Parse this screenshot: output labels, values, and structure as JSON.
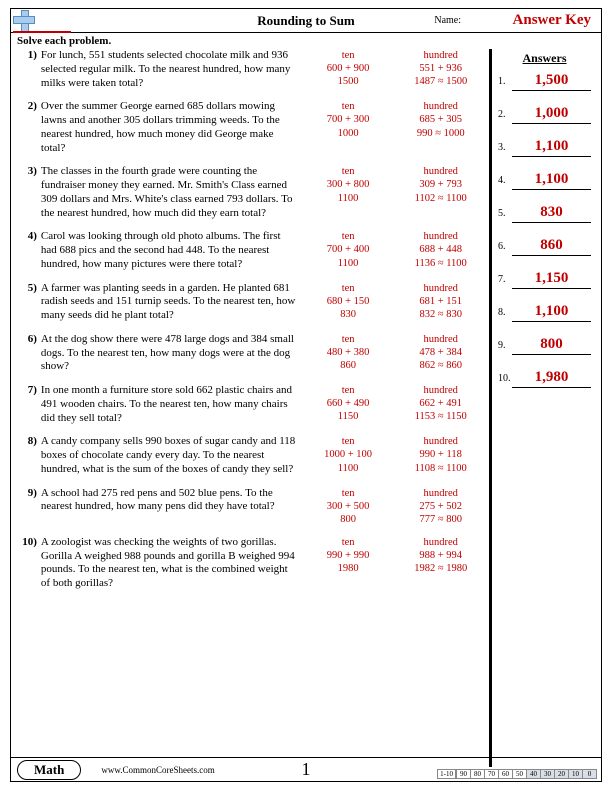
{
  "header": {
    "title": "Rounding to Sum",
    "name_label": "Name:",
    "answer_key": "Answer Key"
  },
  "instruction": "Solve each problem.",
  "answers_heading": "Answers",
  "problems": [
    {
      "n": "1)",
      "text": "For lunch, 551 students selected chocolate milk and 936 selected regular milk. To the nearest hundred, how many milks were taken total?",
      "ten": {
        "label": "ten",
        "line1": "600 + 900",
        "line2": "1500"
      },
      "hund": {
        "label": "hundred",
        "line1": "551 + 936",
        "line2": "1487 ≈ 1500"
      }
    },
    {
      "n": "2)",
      "text": "Over the summer George earned 685 dollars mowing lawns and another 305 dollars trimming weeds. To the nearest hundred, how much money did George make total?",
      "ten": {
        "label": "ten",
        "line1": "700 + 300",
        "line2": "1000"
      },
      "hund": {
        "label": "hundred",
        "line1": "685 + 305",
        "line2": "990 ≈ 1000"
      }
    },
    {
      "n": "3)",
      "text": "The classes in the fourth grade were counting the fundraiser money they earned. Mr. Smith's Class earned 309 dollars and Mrs. White's class earned 793 dollars. To the nearest hundred, how much did they earn total?",
      "ten": {
        "label": "ten",
        "line1": "300 + 800",
        "line2": "1100"
      },
      "hund": {
        "label": "hundred",
        "line1": "309 + 793",
        "line2": "1102 ≈ 1100"
      }
    },
    {
      "n": "4)",
      "text": "Carol was looking through old photo albums. The first had 688 pics and the second had 448. To the nearest hundred, how many pictures were there total?",
      "ten": {
        "label": "ten",
        "line1": "700 + 400",
        "line2": "1100"
      },
      "hund": {
        "label": "hundred",
        "line1": "688 + 448",
        "line2": "1136 ≈ 1100"
      }
    },
    {
      "n": "5)",
      "text": "A farmer was planting seeds in a garden. He planted 681 radish seeds and 151 turnip seeds. To the nearest ten, how many seeds did he plant total?",
      "ten": {
        "label": "ten",
        "line1": "680 + 150",
        "line2": "830"
      },
      "hund": {
        "label": "hundred",
        "line1": "681 + 151",
        "line2": "832 ≈ 830"
      }
    },
    {
      "n": "6)",
      "text": "At the dog show there were 478 large dogs and 384 small dogs. To the nearest ten, how many dogs were at the dog show?",
      "ten": {
        "label": "ten",
        "line1": "480 + 380",
        "line2": "860"
      },
      "hund": {
        "label": "hundred",
        "line1": "478 + 384",
        "line2": "862 ≈ 860"
      }
    },
    {
      "n": "7)",
      "text": "In one month a furniture store sold 662 plastic chairs and 491 wooden chairs. To the nearest ten, how many chairs did they sell total?",
      "ten": {
        "label": "ten",
        "line1": "660 + 490",
        "line2": "1150"
      },
      "hund": {
        "label": "hundred",
        "line1": "662 + 491",
        "line2": "1153 ≈ 1150"
      }
    },
    {
      "n": "8)",
      "text": "A candy company sells 990 boxes of sugar candy and 118 boxes of chocolate candy every day. To the nearest hundred, what is the sum of the boxes of candy they sell?",
      "ten": {
        "label": "ten",
        "line1": "1000 + 100",
        "line2": "1100"
      },
      "hund": {
        "label": "hundred",
        "line1": "990 + 118",
        "line2": "1108 ≈ 1100"
      }
    },
    {
      "n": "9)",
      "text": "A school had 275 red pens and 502 blue pens. To the nearest hundred, how many pens did they have total?",
      "ten": {
        "label": "ten",
        "line1": "300 + 500",
        "line2": "800"
      },
      "hund": {
        "label": "hundred",
        "line1": "275 + 502",
        "line2": "777 ≈ 800"
      }
    },
    {
      "n": "10)",
      "text": "A zoologist was checking the weights of two gorillas. Gorilla A weighed 988 pounds and gorilla B weighed 994 pounds. To the nearest ten, what is the combined weight of both gorillas?",
      "ten": {
        "label": "ten",
        "line1": "990 + 990",
        "line2": "1980"
      },
      "hund": {
        "label": "hundred",
        "line1": "988 + 994",
        "line2": "1982 ≈ 1980"
      }
    }
  ],
  "answers": [
    {
      "n": "1.",
      "v": "1,500"
    },
    {
      "n": "2.",
      "v": "1,000"
    },
    {
      "n": "3.",
      "v": "1,100"
    },
    {
      "n": "4.",
      "v": "1,100"
    },
    {
      "n": "5.",
      "v": "830"
    },
    {
      "n": "6.",
      "v": "860"
    },
    {
      "n": "7.",
      "v": "1,150"
    },
    {
      "n": "8.",
      "v": "1,100"
    },
    {
      "n": "9.",
      "v": "800"
    },
    {
      "n": "10.",
      "v": "1,980"
    }
  ],
  "footer": {
    "subject": "Math",
    "site": "www.CommonCoreSheets.com",
    "page": "1",
    "score_label": "1-10",
    "scores": [
      "90",
      "80",
      "70",
      "60",
      "50",
      "40",
      "30",
      "20",
      "10",
      "0"
    ],
    "shaded_from": 5
  }
}
